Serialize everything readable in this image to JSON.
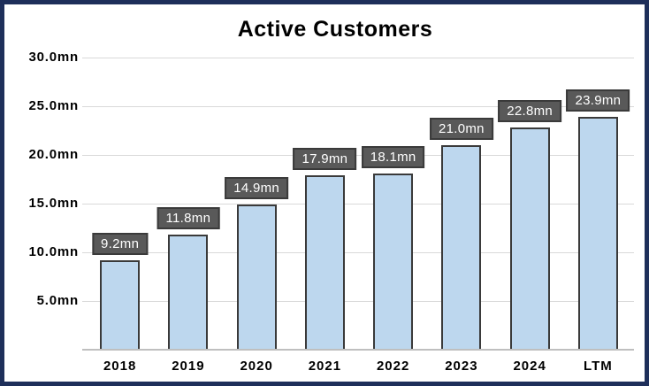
{
  "chart_data": {
    "type": "bar",
    "title": "Active Customers",
    "categories": [
      "2018",
      "2019",
      "2020",
      "2021",
      "2022",
      "2023",
      "2024",
      "LTM"
    ],
    "values": [
      9.2,
      11.8,
      14.9,
      17.9,
      18.1,
      21.0,
      22.8,
      23.9
    ],
    "value_labels": [
      "9.2mn",
      "11.8mn",
      "14.9mn",
      "17.9mn",
      "18.1mn",
      "21.0mn",
      "22.8mn",
      "23.9mn"
    ],
    "y_tick_values": [
      5,
      10,
      15,
      20,
      25,
      30
    ],
    "y_tick_labels": [
      "5.0mn",
      "10.0mn",
      "15.0mn",
      "20.0mn",
      "25.0mn",
      "30.0mn"
    ],
    "xlabel": "",
    "ylabel": "",
    "ylim": [
      0,
      30
    ],
    "grid": true,
    "legend": false,
    "colors": {
      "frame_border": "#1e2f5a",
      "background": "#ffffff",
      "bar_fill": "#bdd7ee",
      "bar_border": "#3a3a3a",
      "value_box_fill": "#595959",
      "value_box_border": "#3a3a3a",
      "value_text": "#ffffff",
      "gridline": "#d9d9d9",
      "axis_line": "#bfbfbf",
      "title_text": "#000000",
      "tick_text": "#000000"
    }
  }
}
